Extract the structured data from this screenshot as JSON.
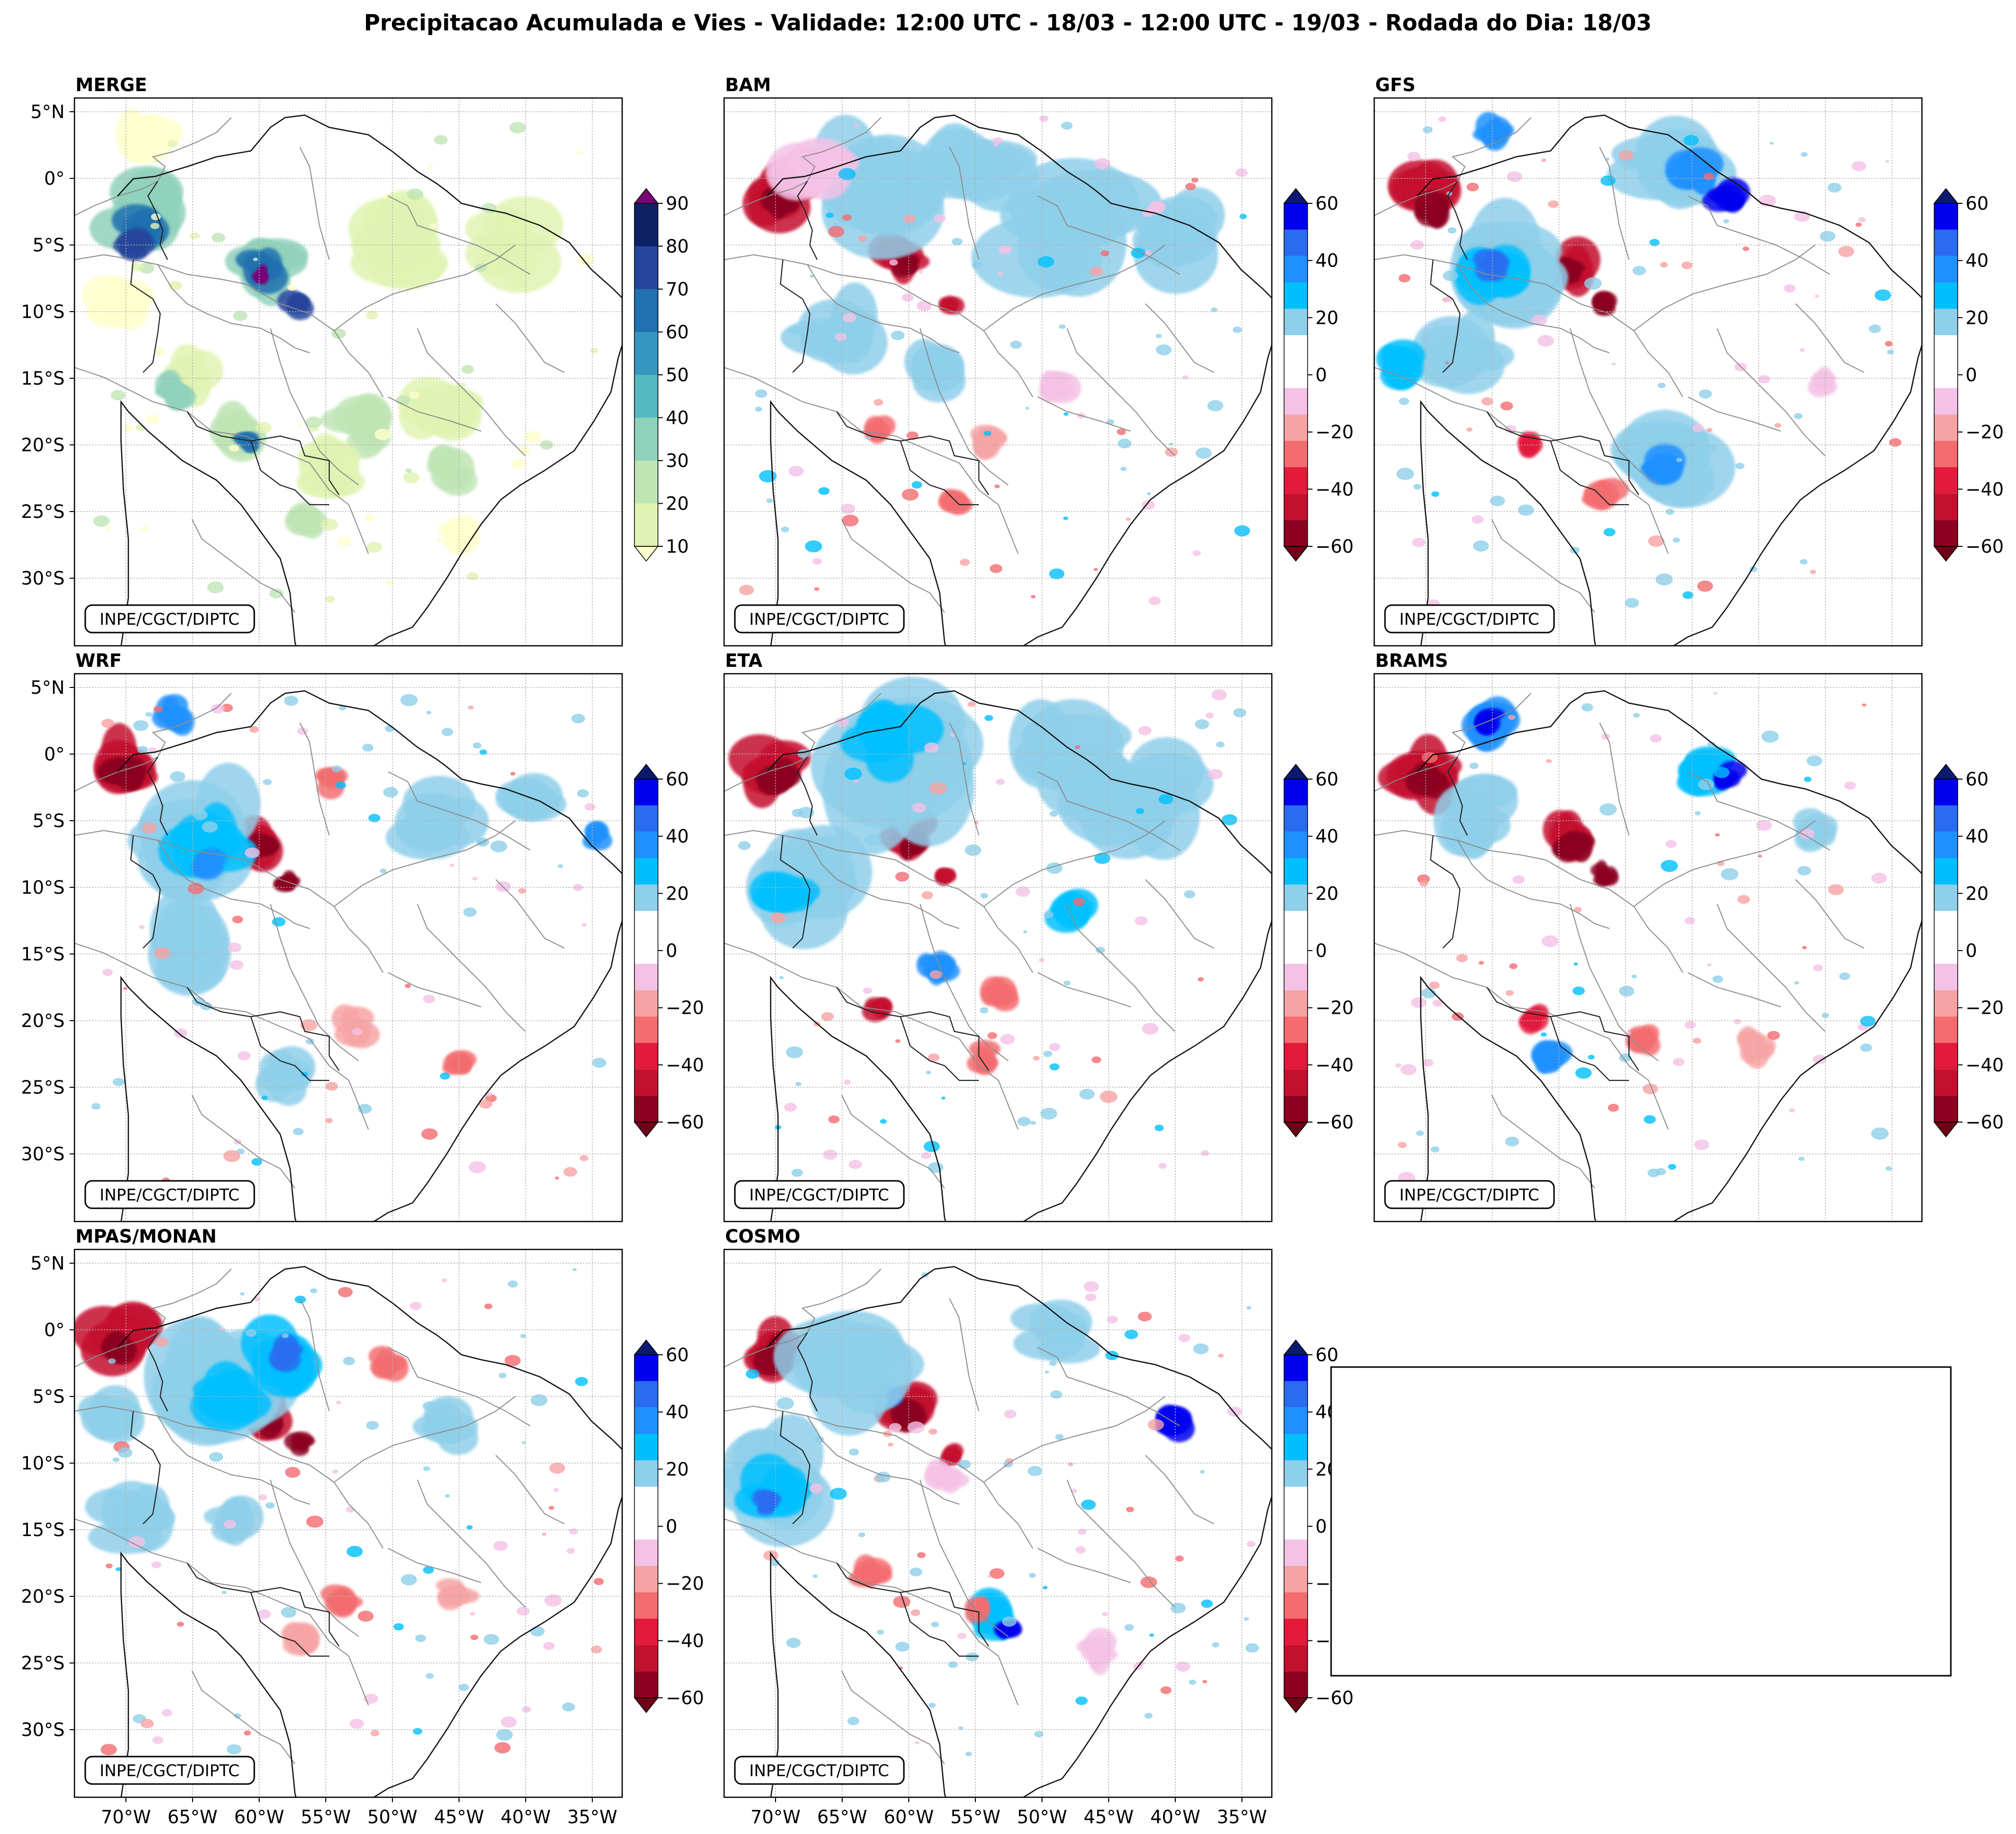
{
  "figure": {
    "title": "Precipitacao Acumulada e Vies - Validade: 12:00 UTC - 18/03 - 12:00 UTC - 19/03 - Rodada do Dia: 18/03",
    "credit": "INPE/CGCT/DIPTC",
    "lat_labels": [
      "5°N",
      "0°",
      "5°S",
      "10°S",
      "15°S",
      "20°S",
      "25°S",
      "30°S"
    ],
    "lon_labels": [
      "70°W",
      "65°W",
      "60°W",
      "55°W",
      "50°W",
      "45°W",
      "40°W",
      "35°W"
    ],
    "panels": [
      {
        "id": "merge",
        "title": "MERGE",
        "scale": "merge"
      },
      {
        "id": "bam",
        "title": "BAM",
        "scale": "bias"
      },
      {
        "id": "gfs",
        "title": "GFS",
        "scale": "bias"
      },
      {
        "id": "wrf",
        "title": "WRF",
        "scale": "bias"
      },
      {
        "id": "eta",
        "title": "ETA",
        "scale": "bias"
      },
      {
        "id": "brams",
        "title": "BRAMS",
        "scale": "bias"
      },
      {
        "id": "mpas",
        "title": "MPAS/MONAN",
        "scale": "bias"
      },
      {
        "id": "cosmo",
        "title": "COSMO",
        "scale": "bias"
      }
    ],
    "merge_colorbar": {
      "ticks": [
        "90",
        "80",
        "70",
        "60",
        "50",
        "40",
        "30",
        "20",
        "10"
      ],
      "colors": [
        "#ffffcc",
        "#e1f3b2",
        "#bfe5b5",
        "#8fd1bb",
        "#56b9c1",
        "#3597bf",
        "#2170b0",
        "#24459b",
        "#0d2163"
      ],
      "extend_top": "#7a0177"
    },
    "bias_colorbar": {
      "ticks": [
        "60",
        "40",
        "20",
        "0",
        "−20",
        "−40",
        "−60"
      ],
      "colors": [
        "#0000ee",
        "#2a6cf0",
        "#1e90ff",
        "#00bfff",
        "#8ecfea",
        "#ffffff",
        "#ffffff",
        "#f4c2e6",
        "#f7a3a3",
        "#f36c70",
        "#e31a3c",
        "#c4102f",
        "#8b0020"
      ],
      "extend_top": "#0a1a6e",
      "extend_bottom": "#6e0018"
    }
  }
}
